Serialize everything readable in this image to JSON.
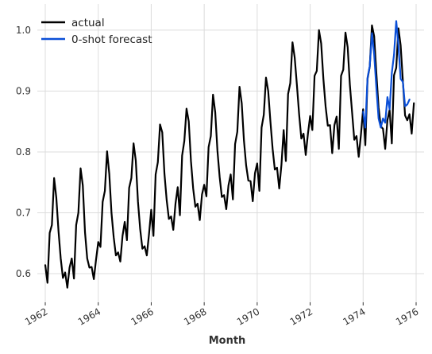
{
  "chart_data": {
    "type": "line",
    "title": "",
    "xlabel": "Month",
    "ylabel": "",
    "xlim": [
      1961.7,
      1976.3
    ],
    "ylim": [
      0.553,
      1.043
    ],
    "grid": true,
    "legend_position": "top-left",
    "x_ticks": [
      {
        "value": 1962,
        "label": "1962"
      },
      {
        "value": 1964,
        "label": "1964"
      },
      {
        "value": 1966,
        "label": "1966"
      },
      {
        "value": 1968,
        "label": "1968"
      },
      {
        "value": 1970,
        "label": "1970"
      },
      {
        "value": 1972,
        "label": "1972"
      },
      {
        "value": 1974,
        "label": "1974"
      },
      {
        "value": 1976,
        "label": "1976"
      }
    ],
    "y_ticks": [
      {
        "value": 0.6,
        "label": "0.6"
      },
      {
        "value": 0.7,
        "label": "0.7"
      },
      {
        "value": 0.8,
        "label": "0.8"
      },
      {
        "value": 0.9,
        "label": "0.9"
      },
      {
        "value": 1.0,
        "label": "1.0"
      }
    ],
    "series": [
      {
        "name": "actual",
        "color": "#000000",
        "x_start": 1962.0,
        "x_step": 0.08333,
        "values": [
          0.614,
          0.585,
          0.667,
          0.68,
          0.757,
          0.725,
          0.67,
          0.625,
          0.593,
          0.602,
          0.577,
          0.61,
          0.625,
          0.592,
          0.68,
          0.7,
          0.773,
          0.745,
          0.668,
          0.625,
          0.61,
          0.611,
          0.591,
          0.623,
          0.652,
          0.644,
          0.718,
          0.736,
          0.801,
          0.764,
          0.7,
          0.66,
          0.63,
          0.635,
          0.62,
          0.662,
          0.685,
          0.655,
          0.741,
          0.757,
          0.814,
          0.786,
          0.718,
          0.673,
          0.641,
          0.645,
          0.63,
          0.665,
          0.705,
          0.662,
          0.763,
          0.783,
          0.845,
          0.832,
          0.764,
          0.721,
          0.69,
          0.694,
          0.672,
          0.715,
          0.742,
          0.696,
          0.794,
          0.818,
          0.871,
          0.85,
          0.785,
          0.74,
          0.71,
          0.715,
          0.688,
          0.73,
          0.746,
          0.727,
          0.808,
          0.826,
          0.894,
          0.865,
          0.802,
          0.759,
          0.726,
          0.729,
          0.706,
          0.745,
          0.763,
          0.722,
          0.813,
          0.833,
          0.907,
          0.88,
          0.819,
          0.778,
          0.753,
          0.752,
          0.719,
          0.765,
          0.781,
          0.736,
          0.84,
          0.861,
          0.922,
          0.9,
          0.85,
          0.805,
          0.771,
          0.774,
          0.74,
          0.779,
          0.836,
          0.785,
          0.895,
          0.913,
          0.98,
          0.955,
          0.91,
          0.862,
          0.822,
          0.83,
          0.795,
          0.83,
          0.859,
          0.836,
          0.925,
          0.933,
          1.0,
          0.978,
          0.92,
          0.875,
          0.843,
          0.844,
          0.798,
          0.844,
          0.858,
          0.805,
          0.925,
          0.935,
          0.996,
          0.972,
          0.91,
          0.865,
          0.82,
          0.826,
          0.792,
          0.828,
          0.87,
          0.811,
          0.92,
          0.94,
          1.008,
          0.99,
          0.929,
          0.873,
          0.842,
          0.838,
          0.805,
          0.852,
          0.869,
          0.814,
          0.926,
          0.938,
          1.003,
          0.975,
          0.917,
          0.86,
          0.852,
          0.862,
          0.83,
          0.88
        ]
      },
      {
        "name": "0-shot forecast",
        "color": "#0b4fd7",
        "x_start": 1974.0,
        "x_step": 0.08333,
        "values": [
          0.866,
          0.84,
          0.922,
          0.941,
          0.995,
          0.96,
          0.905,
          0.855,
          0.84,
          0.855,
          0.848,
          0.89,
          0.87,
          0.93,
          0.96,
          1.015,
          0.975,
          0.92,
          0.915,
          0.875,
          0.878,
          0.886
        ]
      }
    ]
  }
}
